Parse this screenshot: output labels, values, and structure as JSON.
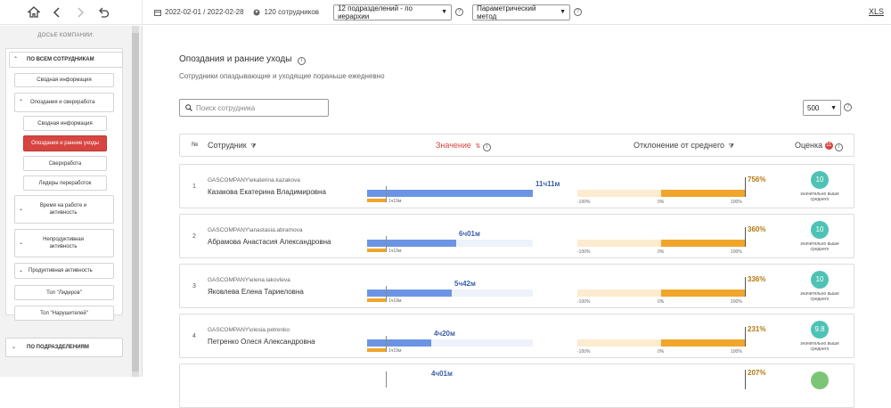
{
  "header": {
    "period": "2022-02-01 / 2022-02-28",
    "employees": "120 сотрудников",
    "dept_select": "12 подразделений - по иерархии",
    "method_select": "Параметрический метод",
    "xls": "XLS"
  },
  "sidebar": {
    "title": "ДОСЬЕ КОМПАНИИ:",
    "all_employees": "ПО ВСЕМ СОТРУДНИКАМ",
    "summary": "Сводная информация",
    "late_overwork": "Опоздания и сверхработа",
    "sub_summary": "Сводная информация",
    "late_early": "Опоздания и ранние уходы",
    "overwork": "Сверхработа",
    "overwork_leaders": "Лидеры переработок",
    "work_time": "Время на работе и активность",
    "unproductive": "Непродуктивная активность",
    "productive": "Продуктивная активность",
    "top_leaders": "Топ \"Лидеров\"",
    "top_violators": "Топ \"Нарушителей\"",
    "by_departments": "ПО ПОДРАЗДЕЛЕНИЯМ"
  },
  "main": {
    "title": "Опоздания и ранние уходы",
    "subtitle": "Сотрудники опаздывающие и уходящие пораньше ежедневно",
    "search_placeholder": "Поиск сотрудника",
    "page_size": "500",
    "columns": {
      "num": "№",
      "employee": "Сотрудник",
      "value": "Значение",
      "deviation": "Отклонение от среднего",
      "score": "Оценка",
      "score_badge": "11"
    },
    "norm_label": "1ч19м",
    "axis": {
      "min": "-100%",
      "zero": "0%",
      "max": "100%"
    },
    "score_label": "значительно выше среднего",
    "rows": [
      {
        "num": "1",
        "login": "GASCOMPANY\\ekaterina.kazakova",
        "name": "Казакова Екатерина Владимировна",
        "value": "11ч11м",
        "value_fraction": 1.0,
        "deviation": "756%",
        "score": "10"
      },
      {
        "num": "2",
        "login": "GASCOMPANY\\anastasia.abramova",
        "name": "Абрамова Анастасия Александровна",
        "value": "6ч01м",
        "value_fraction": 0.538,
        "deviation": "360%",
        "score": "10"
      },
      {
        "num": "3",
        "login": "GASCOMPANY\\elena.iakovleva",
        "name": "Яковлева Елена Тариеловна",
        "value": "5ч42м",
        "value_fraction": 0.51,
        "deviation": "336%",
        "score": "10"
      },
      {
        "num": "4",
        "login": "GASCOMPANY\\olesia.petrenko",
        "name": "Петренко Олеся Александровна",
        "value": "4ч20м",
        "value_fraction": 0.387,
        "deviation": "231%",
        "score": "9.8"
      }
    ],
    "partial_row": {
      "value": "4ч01м",
      "deviation": "207%"
    }
  }
}
